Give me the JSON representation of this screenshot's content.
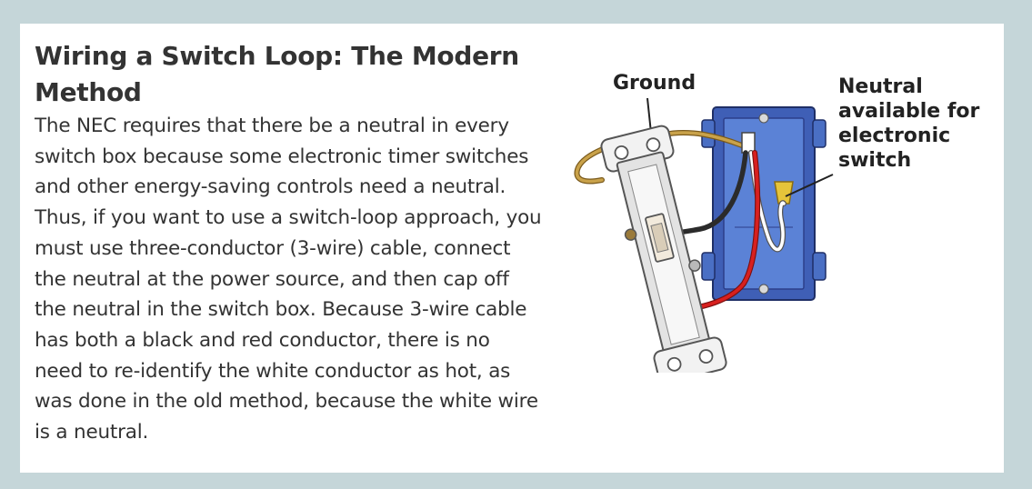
{
  "article": {
    "title": "Wiring a Switch Loop: The Modern Method",
    "body": "The NEC requires that there be a neutral in every switch box because some electronic timer switches and other energy-saving controls need a neutral. Thus, if you want to use a switch-loop approach, you must use three-conductor (3-wire) cable, connect the neutral at the power source, and then cap off the neutral in the switch box. Because 3-wire cable has both a black and red conductor, there is no need to re-identify the white conductor as hot, as was done in the old method, because the white wire is a neutral."
  },
  "illustration": {
    "label_ground": "Ground",
    "label_neutral_lines": [
      "Neutral",
      "available for",
      "electronic",
      "switch"
    ],
    "colors": {
      "box_blue": "#4a6fc4",
      "ground_wire": "#c9a24a",
      "hot_black": "#2b2b2b",
      "hot_red": "#d8201f",
      "neutral_white": "#ffffff",
      "wire_nut": "#e6c43a",
      "switch_body": "#e9e9e9"
    }
  }
}
